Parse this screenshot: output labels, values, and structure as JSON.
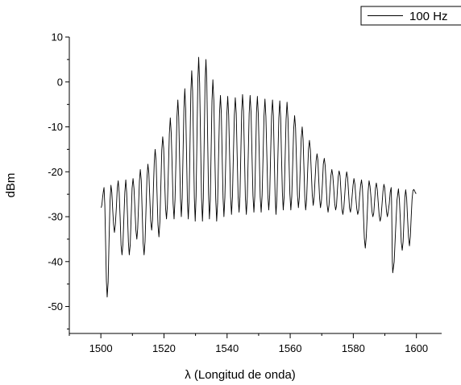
{
  "chart_data": {
    "type": "line",
    "xlabel": "λ (Longitud de onda)",
    "ylabel": "dBm",
    "xlim": [
      1490,
      1608
    ],
    "ylim": [
      -56,
      10
    ],
    "x_ticks": [
      1500,
      1520,
      1540,
      1560,
      1580,
      1600
    ],
    "y_ticks": [
      10,
      0,
      -10,
      -20,
      -30,
      -40,
      -50
    ],
    "grid": false,
    "legend": {
      "position": "top-right"
    },
    "series": [
      {
        "name": "100 Hz",
        "color": "#000000",
        "x_start": 1500,
        "x_end": 1600,
        "peaks": [
          [
            1501.0,
            -23.5
          ],
          [
            1503.2,
            -23.0
          ],
          [
            1505.5,
            -22.0
          ],
          [
            1507.9,
            -21.8
          ],
          [
            1510.2,
            -21.5
          ],
          [
            1512.5,
            -19.5
          ],
          [
            1514.9,
            -18.3
          ],
          [
            1517.2,
            -15.0
          ],
          [
            1519.6,
            -12.2
          ],
          [
            1522.0,
            -8.0
          ],
          [
            1524.4,
            -4.0
          ],
          [
            1526.6,
            -1.5
          ],
          [
            1528.8,
            2.5
          ],
          [
            1531.0,
            5.5
          ],
          [
            1533.3,
            5.0
          ],
          [
            1535.5,
            0.5
          ],
          [
            1537.9,
            -3.0
          ],
          [
            1540.2,
            -3.2
          ],
          [
            1542.6,
            -3.5
          ],
          [
            1544.9,
            -2.8
          ],
          [
            1547.3,
            -3.0
          ],
          [
            1549.6,
            -3.2
          ],
          [
            1552.0,
            -3.8
          ],
          [
            1554.4,
            -4.0
          ],
          [
            1556.7,
            -4.2
          ],
          [
            1559.0,
            -4.5
          ],
          [
            1561.4,
            -7.5
          ],
          [
            1563.8,
            -10.0
          ],
          [
            1566.1,
            -13.0
          ],
          [
            1568.5,
            -16.0
          ],
          [
            1570.8,
            -17.0
          ],
          [
            1573.2,
            -19.5
          ],
          [
            1575.5,
            -19.8
          ],
          [
            1577.9,
            -20.0
          ],
          [
            1580.2,
            -21.5
          ],
          [
            1582.6,
            -21.8
          ],
          [
            1585.0,
            -22.0
          ],
          [
            1587.3,
            -22.5
          ],
          [
            1589.7,
            -22.8
          ],
          [
            1592.0,
            -23.5
          ],
          [
            1594.3,
            -23.8
          ],
          [
            1596.6,
            -24.0
          ],
          [
            1598.9,
            -24.2
          ]
        ],
        "troughs": [
          [
            1500.1,
            -28.0
          ],
          [
            1502.0,
            -47.9
          ],
          [
            1504.3,
            -33.5
          ],
          [
            1506.7,
            -38.5
          ],
          [
            1509.0,
            -38.5
          ],
          [
            1511.4,
            -35.0
          ],
          [
            1513.7,
            -38.5
          ],
          [
            1516.1,
            -33.0
          ],
          [
            1518.4,
            -34.5
          ],
          [
            1520.8,
            -30.5
          ],
          [
            1523.2,
            -30.5
          ],
          [
            1525.5,
            -30.0
          ],
          [
            1527.7,
            -30.5
          ],
          [
            1529.9,
            -31.0
          ],
          [
            1532.2,
            -31.0
          ],
          [
            1534.4,
            -30.5
          ],
          [
            1536.7,
            -31.0
          ],
          [
            1539.0,
            -30.0
          ],
          [
            1541.4,
            -29.5
          ],
          [
            1543.8,
            -29.0
          ],
          [
            1546.1,
            -29.5
          ],
          [
            1548.5,
            -29.0
          ],
          [
            1550.8,
            -29.0
          ],
          [
            1553.2,
            -28.5
          ],
          [
            1555.5,
            -29.5
          ],
          [
            1557.8,
            -28.5
          ],
          [
            1560.2,
            -28.5
          ],
          [
            1562.6,
            -28.0
          ],
          [
            1564.9,
            -28.5
          ],
          [
            1567.3,
            -27.5
          ],
          [
            1569.6,
            -28.0
          ],
          [
            1572.0,
            -29.0
          ],
          [
            1574.4,
            -28.5
          ],
          [
            1576.7,
            -29.5
          ],
          [
            1579.1,
            -29.0
          ],
          [
            1581.4,
            -29.5
          ],
          [
            1583.8,
            -37.0
          ],
          [
            1586.2,
            -30.0
          ],
          [
            1588.5,
            -31.0
          ],
          [
            1590.8,
            -30.0
          ],
          [
            1592.5,
            -42.5
          ],
          [
            1595.5,
            -37.5
          ],
          [
            1597.8,
            -36.5
          ],
          [
            1600.0,
            -24.8
          ]
        ]
      }
    ]
  }
}
